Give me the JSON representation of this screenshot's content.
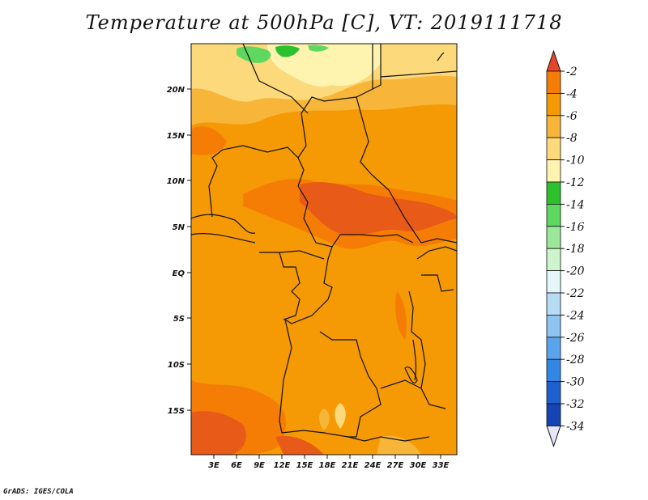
{
  "title": "Temperature at 500hPa [C], VT: 2019111718",
  "credit": "GrADS: IGES/COLA",
  "map": {
    "lat_labels": [
      "20N",
      "15N",
      "10N",
      "5N",
      "EQ",
      "5S",
      "10S",
      "15S"
    ],
    "lon_labels": [
      "3E",
      "6E",
      "9E",
      "12E",
      "15E",
      "18E",
      "21E",
      "24E",
      "27E",
      "30E",
      "33E"
    ]
  },
  "colorbar": {
    "unit": "C",
    "levels": [
      {
        "label": "-2",
        "color": "#e85a18"
      },
      {
        "label": "-4",
        "color": "#f57d05"
      },
      {
        "label": "-6",
        "color": "#f59a05"
      },
      {
        "label": "-8",
        "color": "#f7b53a"
      },
      {
        "label": "-10",
        "color": "#fcd97a"
      },
      {
        "label": "-12",
        "color": "#fff3b0"
      },
      {
        "label": "-14",
        "color": "#2ec12e"
      },
      {
        "label": "-16",
        "color": "#5fd85f"
      },
      {
        "label": "-18",
        "color": "#9be89b"
      },
      {
        "label": "-20",
        "color": "#cdf5cd"
      },
      {
        "label": "-22",
        "color": "#e6f7fb"
      },
      {
        "label": "-24",
        "color": "#b6dcf5"
      },
      {
        "label": "-26",
        "color": "#8ec3f2"
      },
      {
        "label": "-28",
        "color": "#5aa4ee"
      },
      {
        "label": "-30",
        "color": "#3286e6"
      },
      {
        "label": "-32",
        "color": "#1e5fd0"
      },
      {
        "label": "-34",
        "color": "#1444b5"
      }
    ],
    "top_color": "#e8462a",
    "bottom_color": "#0d1670",
    "tail_color": "#e6e6fa"
  }
}
